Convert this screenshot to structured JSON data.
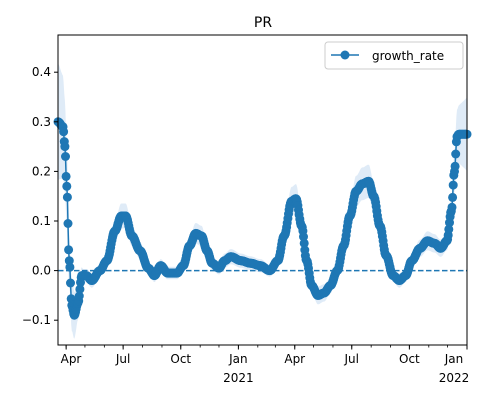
{
  "chart_data": {
    "type": "line",
    "title": "PR",
    "xlabel": "",
    "ylabel": "",
    "x_range": [
      "2020-03-19",
      "2022-01-01"
    ],
    "ylim": [
      -0.15,
      0.475
    ],
    "yticks": [
      -0.1,
      0.0,
      0.1,
      0.2,
      0.3,
      0.4
    ],
    "ytick_labels": [
      "−0.1",
      "0.0",
      "0.1",
      "0.2",
      "0.3",
      "0.4"
    ],
    "xticks": [
      {
        "date": "2020-04-01",
        "label": "Apr",
        "sublabel": ""
      },
      {
        "date": "2020-07-01",
        "label": "Jul",
        "sublabel": ""
      },
      {
        "date": "2020-10-01",
        "label": "Oct",
        "sublabel": ""
      },
      {
        "date": "2021-01-01",
        "label": "Jan",
        "sublabel": "2021"
      },
      {
        "date": "2021-04-01",
        "label": "Apr",
        "sublabel": ""
      },
      {
        "date": "2021-07-01",
        "label": "Jul",
        "sublabel": ""
      },
      {
        "date": "2021-10-01",
        "label": "Oct",
        "sublabel": ""
      },
      {
        "date": "2022-01-01",
        "label": "Jan",
        "sublabel": "2022"
      }
    ],
    "reference_line": {
      "y": 0.0,
      "style": "dashed"
    },
    "legend": {
      "placement": "upper-right",
      "entries": [
        "growth_rate"
      ]
    },
    "grid": false,
    "color": "#1f77b4",
    "band_color": "#dbe9f6",
    "series": [
      {
        "name": "growth_rate",
        "knots": [
          {
            "x": "2020-03-19",
            "y": 0.3
          },
          {
            "x": "2020-03-27",
            "y": 0.29
          },
          {
            "x": "2020-03-30",
            "y": 0.25
          },
          {
            "x": "2020-04-02",
            "y": 0.17
          },
          {
            "x": "2020-04-06",
            "y": 0.02
          },
          {
            "x": "2020-04-10",
            "y": -0.07
          },
          {
            "x": "2020-04-14",
            "y": -0.09
          },
          {
            "x": "2020-04-20",
            "y": -0.065
          },
          {
            "x": "2020-04-26",
            "y": -0.01
          },
          {
            "x": "2020-05-03",
            "y": -0.01
          },
          {
            "x": "2020-05-12",
            "y": -0.02
          },
          {
            "x": "2020-05-25",
            "y": 0.0
          },
          {
            "x": "2020-06-05",
            "y": 0.02
          },
          {
            "x": "2020-06-18",
            "y": 0.08
          },
          {
            "x": "2020-06-28",
            "y": 0.11
          },
          {
            "x": "2020-07-05",
            "y": 0.11
          },
          {
            "x": "2020-07-15",
            "y": 0.07
          },
          {
            "x": "2020-07-28",
            "y": 0.04
          },
          {
            "x": "2020-08-10",
            "y": 0.005
          },
          {
            "x": "2020-08-20",
            "y": -0.01
          },
          {
            "x": "2020-08-30",
            "y": 0.01
          },
          {
            "x": "2020-09-10",
            "y": -0.005
          },
          {
            "x": "2020-09-25",
            "y": -0.005
          },
          {
            "x": "2020-10-05",
            "y": 0.01
          },
          {
            "x": "2020-10-15",
            "y": 0.05
          },
          {
            "x": "2020-10-25",
            "y": 0.075
          },
          {
            "x": "2020-11-03",
            "y": 0.07
          },
          {
            "x": "2020-11-12",
            "y": 0.04
          },
          {
            "x": "2020-11-20",
            "y": 0.015
          },
          {
            "x": "2020-12-01",
            "y": 0.005
          },
          {
            "x": "2020-12-10",
            "y": 0.02
          },
          {
            "x": "2020-12-20",
            "y": 0.028
          },
          {
            "x": "2021-01-05",
            "y": 0.02
          },
          {
            "x": "2021-01-20",
            "y": 0.015
          },
          {
            "x": "2021-02-05",
            "y": 0.01
          },
          {
            "x": "2021-02-20",
            "y": 0.0
          },
          {
            "x": "2021-03-05",
            "y": 0.02
          },
          {
            "x": "2021-03-15",
            "y": 0.07
          },
          {
            "x": "2021-03-27",
            "y": 0.14
          },
          {
            "x": "2021-04-03",
            "y": 0.145
          },
          {
            "x": "2021-04-12",
            "y": 0.09
          },
          {
            "x": "2021-04-20",
            "y": 0.02
          },
          {
            "x": "2021-04-28",
            "y": -0.03
          },
          {
            "x": "2021-05-08",
            "y": -0.05
          },
          {
            "x": "2021-05-18",
            "y": -0.045
          },
          {
            "x": "2021-05-28",
            "y": -0.03
          },
          {
            "x": "2021-06-08",
            "y": 0.0
          },
          {
            "x": "2021-06-18",
            "y": 0.05
          },
          {
            "x": "2021-06-28",
            "y": 0.11
          },
          {
            "x": "2021-07-08",
            "y": 0.16
          },
          {
            "x": "2021-07-18",
            "y": 0.175
          },
          {
            "x": "2021-07-28",
            "y": 0.18
          },
          {
            "x": "2021-08-05",
            "y": 0.15
          },
          {
            "x": "2021-08-15",
            "y": 0.09
          },
          {
            "x": "2021-08-25",
            "y": 0.03
          },
          {
            "x": "2021-09-05",
            "y": -0.01
          },
          {
            "x": "2021-09-15",
            "y": -0.02
          },
          {
            "x": "2021-09-25",
            "y": -0.01
          },
          {
            "x": "2021-10-05",
            "y": 0.02
          },
          {
            "x": "2021-10-18",
            "y": 0.045
          },
          {
            "x": "2021-10-30",
            "y": 0.06
          },
          {
            "x": "2021-11-10",
            "y": 0.055
          },
          {
            "x": "2021-11-20",
            "y": 0.045
          },
          {
            "x": "2021-11-30",
            "y": 0.06
          },
          {
            "x": "2021-12-07",
            "y": 0.12
          },
          {
            "x": "2021-12-12",
            "y": 0.2
          },
          {
            "x": "2021-12-16",
            "y": 0.27
          },
          {
            "x": "2021-12-19",
            "y": 0.275
          },
          {
            "x": "2022-01-01",
            "y": 0.275
          }
        ]
      }
    ]
  }
}
